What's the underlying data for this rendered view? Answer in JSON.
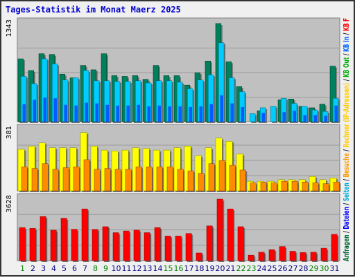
{
  "title": "Tages-Statistik im Monat Maerz 2025",
  "days": [
    "1",
    "2",
    "3",
    "4",
    "5",
    "6",
    "7",
    "8",
    "9",
    "10",
    "11",
    "12",
    "13",
    "14",
    "15",
    "16",
    "17",
    "18",
    "19",
    "20",
    "21",
    "22",
    "23",
    "24",
    "25",
    "26",
    "27",
    "28",
    "29",
    "30",
    "31"
  ],
  "weekend_days": [
    1,
    8,
    9,
    15,
    16,
    22,
    23,
    29,
    30
  ],
  "right_labels": [
    {
      "text": "Anfragen",
      "color": "#006633"
    },
    {
      "text": " / ",
      "color": "#000000"
    },
    {
      "text": "Dateien",
      "color": "#0000ff"
    },
    {
      "text": " / ",
      "color": "#000000"
    },
    {
      "text": "Seiten",
      "color": "#00aacc"
    },
    {
      "text": " / ",
      "color": "#000000"
    },
    {
      "text": "Besuche",
      "color": "#ff9900"
    },
    {
      "text": " / ",
      "color": "#000000"
    },
    {
      "text": "Rechner (IP-Adressen)",
      "color": "#ffcc00"
    },
    {
      "text": " / ",
      "color": "#000000"
    },
    {
      "text": "KB Out",
      "color": "#00aa00"
    },
    {
      "text": " / ",
      "color": "#000000"
    },
    {
      "text": "KB In",
      "color": "#0066ff"
    },
    {
      "text": " / ",
      "color": "#000000"
    },
    {
      "text": "KB F",
      "color": "#ff0000"
    }
  ],
  "colors": {
    "anfragen": "#00805c",
    "dateien": "#0000ff",
    "seiten": "#00ccff",
    "besuche": "#ff8c00",
    "rechner": "#ffff00",
    "kb": "#ff0000",
    "plot_bg": "#c0c0c0",
    "title": "#0000cc",
    "weekday_label": "#000080",
    "weekend_label": "#008000"
  },
  "chart_data": [
    {
      "type": "bar",
      "panel": "top",
      "ymax_label": "1343",
      "ymax": 1343,
      "series": [
        {
          "name": "Anfragen",
          "values": [
            860,
            700,
            930,
            920,
            650,
            600,
            770,
            710,
            930,
            630,
            620,
            630,
            580,
            770,
            630,
            630,
            500,
            670,
            830,
            1343,
            820,
            480,
            0,
            150,
            0,
            300,
            310,
            210,
            190,
            240,
            760
          ]
        },
        {
          "name": "Dateien",
          "values": [
            240,
            300,
            330,
            320,
            230,
            220,
            260,
            250,
            230,
            220,
            220,
            230,
            210,
            220,
            210,
            210,
            200,
            210,
            240,
            360,
            250,
            200,
            0,
            120,
            0,
            130,
            150,
            90,
            90,
            80,
            220
          ]
        },
        {
          "name": "Seiten",
          "values": [
            620,
            520,
            860,
            790,
            570,
            600,
            700,
            560,
            560,
            550,
            550,
            560,
            530,
            560,
            560,
            540,
            450,
            570,
            640,
            1080,
            600,
            410,
            110,
            190,
            210,
            320,
            250,
            210,
            160,
            140,
            320
          ]
        }
      ]
    },
    {
      "type": "bar",
      "panel": "middle",
      "ymax_label": "381",
      "ymax": 381,
      "series": [
        {
          "name": "Rechner (IP-Adressen)",
          "values": [
            260,
            280,
            300,
            270,
            270,
            270,
            365,
            280,
            255,
            250,
            255,
            270,
            265,
            255,
            255,
            270,
            280,
            220,
            270,
            330,
            310,
            230,
            60,
            60,
            60,
            70,
            70,
            70,
            90,
            70,
            80
          ]
        },
        {
          "name": "Besuche",
          "values": [
            150,
            140,
            170,
            135,
            145,
            150,
            195,
            135,
            140,
            135,
            135,
            150,
            150,
            150,
            150,
            135,
            125,
            110,
            170,
            190,
            160,
            130,
            50,
            55,
            50,
            60,
            60,
            55,
            50,
            45,
            55
          ]
        }
      ]
    },
    {
      "type": "bar",
      "panel": "bottom",
      "ymax_label": "3628",
      "ymax": 3628,
      "series": [
        {
          "name": "KB F",
          "values": [
            1950,
            1900,
            2600,
            1800,
            2500,
            1850,
            3050,
            1840,
            2000,
            1650,
            1750,
            1800,
            1650,
            1950,
            1450,
            1450,
            1600,
            450,
            2050,
            3628,
            3050,
            2000,
            320,
            500,
            650,
            830,
            550,
            480,
            500,
            730,
            1550
          ]
        }
      ]
    }
  ]
}
